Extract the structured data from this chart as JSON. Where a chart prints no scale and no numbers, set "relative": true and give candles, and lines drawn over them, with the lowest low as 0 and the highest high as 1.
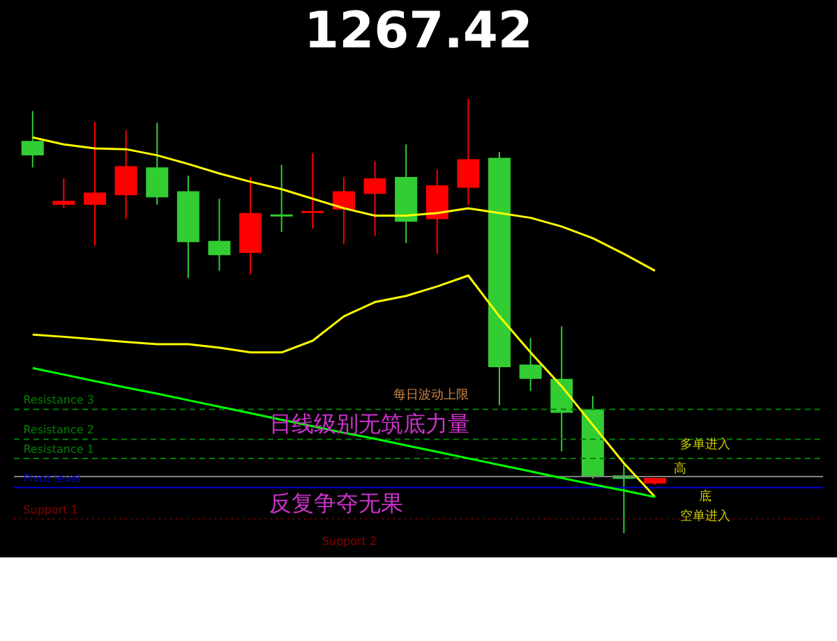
{
  "chart_data": {
    "type": "candlestick",
    "title": "1267.42",
    "relative": true,
    "categories": [
      null,
      null,
      null,
      null,
      null,
      null,
      null,
      null,
      null,
      null,
      null,
      null,
      null,
      null,
      null,
      null,
      null,
      null,
      null,
      null,
      null
    ],
    "ohlc": [
      [
        0.903,
        0.972,
        0.842,
        0.87
      ],
      [
        0.756,
        0.817,
        0.748,
        0.765
      ],
      [
        0.756,
        0.947,
        0.662,
        0.784
      ],
      [
        0.778,
        0.928,
        0.723,
        0.845
      ],
      [
        0.842,
        0.945,
        0.756,
        0.773
      ],
      [
        0.787,
        0.823,
        0.587,
        0.67
      ],
      [
        0.673,
        0.77,
        0.604,
        0.64
      ],
      [
        0.645,
        0.82,
        0.596,
        0.737
      ],
      [
        0.734,
        0.848,
        0.693,
        0.729
      ],
      [
        0.737,
        0.875,
        0.701,
        0.742
      ],
      [
        0.745,
        0.82,
        0.665,
        0.787
      ],
      [
        0.781,
        0.856,
        0.684,
        0.817
      ],
      [
        0.82,
        0.895,
        0.668,
        0.717
      ],
      [
        0.723,
        0.837,
        0.643,
        0.801
      ],
      [
        0.795,
        1.0,
        0.756,
        0.861
      ],
      [
        0.864,
        0.878,
        0.294,
        0.382
      ],
      [
        0.388,
        0.449,
        0.327,
        0.355
      ],
      [
        0.355,
        0.476,
        0.188,
        0.277
      ],
      [
        0.285,
        0.316,
        0.125,
        0.13
      ],
      [
        0.133,
        0.163,
        0.0,
        0.125
      ],
      [
        0.114,
        0.127,
        0.111,
        0.127
      ]
    ],
    "colors": [
      "#32cd32",
      "#ff0000",
      "#ff0000",
      "#ff0000",
      "#32cd32",
      "#32cd32",
      "#32cd32",
      "#ff0000",
      "#32cd32",
      "#ff0000",
      "#ff0000",
      "#ff0000",
      "#32cd32",
      "#ff0000",
      "#ff0000",
      "#32cd32",
      "#32cd32",
      "#32cd32",
      "#32cd32",
      "#32cd32",
      "#ff0000"
    ],
    "series": [
      {
        "type": "line",
        "color": "#ffff00",
        "values": [
          0.911,
          0.895,
          0.886,
          0.884,
          0.87,
          0.85,
          0.828,
          0.809,
          0.792,
          0.77,
          0.748,
          0.731,
          0.731,
          0.737,
          0.748,
          0.737,
          0.726,
          0.706,
          0.679,
          0.643,
          0.604
        ]
      },
      {
        "type": "line",
        "color": "#ffff00",
        "values": [
          0.457,
          0.452,
          0.446,
          0.44,
          0.435,
          0.435,
          0.427,
          0.416,
          0.416,
          0.443,
          0.499,
          0.532,
          0.546,
          0.568,
          0.593,
          0.499,
          0.416,
          0.338,
          0.249,
          0.161,
          0.083
        ]
      },
      {
        "type": "line",
        "color": "#00ff00",
        "values": [
          0.38,
          0.365,
          0.35,
          0.335,
          0.321,
          0.306,
          0.291,
          0.276,
          0.261,
          0.246,
          0.231,
          0.217,
          0.202,
          0.187,
          0.172,
          0.157,
          0.142,
          0.127,
          0.112,
          0.098,
          0.083
        ]
      }
    ],
    "ref_lines": [
      {
        "axis": "y",
        "value": 0.285,
        "label": "Resistance 3",
        "color": "#008000",
        "line_style": "dashed"
      },
      {
        "axis": "y",
        "value": 0.216,
        "label": "Resistance 2",
        "color": "#008000",
        "line_style": "dashed"
      },
      {
        "axis": "y",
        "value": 0.172,
        "label": "Resistance 1",
        "color": "#008000",
        "line_style": "dashed"
      },
      {
        "axis": "y",
        "value": 0.13,
        "color": "#808080",
        "line_style": "solid"
      },
      {
        "axis": "y",
        "value": 0.105,
        "label": "Pivot level",
        "color": "#0000cd",
        "line_style": "solid"
      },
      {
        "axis": "y",
        "value": 0.033,
        "label": "Support 1",
        "color": "#8b0000",
        "line_style": "dotted"
      }
    ],
    "annotations": [
      "日线级别无筑底力量",
      "反复争夺无果",
      "每日波动上限",
      "多单进入",
      "高",
      "底",
      "空单进入",
      "Support 2"
    ]
  }
}
